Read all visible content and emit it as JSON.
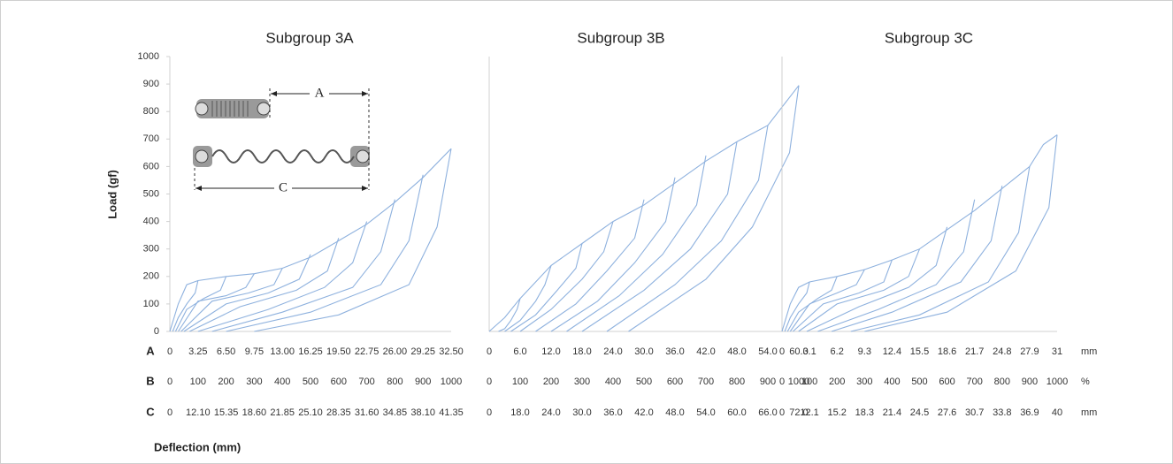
{
  "figure": {
    "y_label": "Load (gf)",
    "x_label": "Deflection (mm)",
    "row_names": [
      "A",
      "B",
      "C"
    ],
    "units": [
      "mm",
      "%",
      "mm"
    ],
    "inset_labels": [
      "A",
      "C"
    ]
  },
  "chart_data": [
    {
      "type": "line",
      "title": "Subgroup 3A",
      "xlim": [
        0,
        1000
      ],
      "ylim": [
        0,
        1000
      ],
      "yticks": [
        0,
        100,
        200,
        300,
        400,
        500,
        600,
        700,
        800,
        900,
        1000
      ],
      "xticks": [
        0,
        100,
        200,
        300,
        400,
        500,
        600,
        700,
        800,
        900,
        1000
      ],
      "row_a": [
        "0",
        "3.25",
        "6.50",
        "9.75",
        "13.00",
        "16.25",
        "19.50",
        "22.75",
        "26.00",
        "29.25",
        "32.50"
      ],
      "row_c": [
        "0",
        "12.10",
        "15.35",
        "18.60",
        "21.85",
        "25.10",
        "28.35",
        "31.60",
        "34.85",
        "38.10",
        "41.35"
      ],
      "series": [
        {
          "color": "#8eb1de",
          "x": [
            0,
            30,
            60,
            100,
            200,
            300,
            400,
            500,
            600,
            700,
            800,
            900,
            1000
          ],
          "values": [
            0,
            100,
            170,
            185,
            200,
            210,
            230,
            270,
            330,
            390,
            470,
            560,
            665
          ]
        },
        {
          "color": "#8eb1de",
          "x": [
            1000,
            950,
            850,
            600,
            300
          ],
          "values": [
            665,
            380,
            170,
            60,
            0
          ]
        },
        {
          "color": "#8eb1de",
          "x": [
            900,
            850,
            750,
            500,
            200
          ],
          "values": [
            570,
            330,
            170,
            70,
            0
          ]
        },
        {
          "color": "#8eb1de",
          "x": [
            800,
            750,
            650,
            400,
            150
          ],
          "values": [
            480,
            290,
            160,
            70,
            0
          ]
        },
        {
          "color": "#8eb1de",
          "x": [
            700,
            650,
            550,
            350,
            100
          ],
          "values": [
            400,
            250,
            160,
            80,
            0
          ]
        },
        {
          "color": "#8eb1de",
          "x": [
            600,
            560,
            450,
            250,
            70
          ],
          "values": [
            340,
            220,
            150,
            90,
            0
          ]
        },
        {
          "color": "#8eb1de",
          "x": [
            500,
            460,
            350,
            200,
            50
          ],
          "values": [
            280,
            190,
            140,
            100,
            0
          ]
        },
        {
          "color": "#8eb1de",
          "x": [
            400,
            370,
            280,
            150,
            40
          ],
          "values": [
            230,
            170,
            140,
            110,
            0
          ]
        },
        {
          "color": "#8eb1de",
          "x": [
            300,
            270,
            200,
            100,
            30
          ],
          "values": [
            210,
            160,
            130,
            110,
            0
          ]
        },
        {
          "color": "#8eb1de",
          "x": [
            200,
            180,
            120,
            60,
            20
          ],
          "values": [
            200,
            150,
            120,
            80,
            0
          ]
        },
        {
          "color": "#8eb1de",
          "x": [
            100,
            90,
            60,
            30,
            10
          ],
          "values": [
            185,
            140,
            100,
            50,
            0
          ]
        }
      ]
    },
    {
      "type": "line",
      "title": "Subgroup 3B",
      "xlim": [
        0,
        1000
      ],
      "ylim": [
        0,
        1000
      ],
      "xticks": [
        0,
        100,
        200,
        300,
        400,
        500,
        600,
        700,
        800,
        900,
        1000
      ],
      "row_a": [
        "0",
        "6.0",
        "12.0",
        "18.0",
        "24.0",
        "30.0",
        "36.0",
        "42.0",
        "48.0",
        "54.0",
        "60.0"
      ],
      "row_c": [
        "0",
        "18.0",
        "24.0",
        "30.0",
        "36.0",
        "42.0",
        "48.0",
        "54.0",
        "60.0",
        "66.0",
        "72.0"
      ],
      "series": [
        {
          "color": "#8eb1de",
          "x": [
            0,
            50,
            100,
            200,
            300,
            400,
            500,
            600,
            700,
            800,
            900,
            1000
          ],
          "values": [
            0,
            50,
            120,
            240,
            320,
            400,
            460,
            540,
            620,
            690,
            750,
            895
          ]
        },
        {
          "color": "#8eb1de",
          "x": [
            1000,
            970,
            850,
            700,
            450
          ],
          "values": [
            895,
            650,
            380,
            190,
            0
          ]
        },
        {
          "color": "#8eb1de",
          "x": [
            900,
            870,
            750,
            600,
            380
          ],
          "values": [
            750,
            550,
            330,
            170,
            0
          ]
        },
        {
          "color": "#8eb1de",
          "x": [
            800,
            770,
            650,
            500,
            300
          ],
          "values": [
            690,
            500,
            300,
            150,
            0
          ]
        },
        {
          "color": "#8eb1de",
          "x": [
            700,
            670,
            560,
            420,
            250
          ],
          "values": [
            640,
            460,
            280,
            130,
            0
          ]
        },
        {
          "color": "#8eb1de",
          "x": [
            600,
            570,
            470,
            350,
            200
          ],
          "values": [
            560,
            400,
            250,
            110,
            0
          ]
        },
        {
          "color": "#8eb1de",
          "x": [
            500,
            470,
            380,
            280,
            150
          ],
          "values": [
            480,
            340,
            220,
            100,
            0
          ]
        },
        {
          "color": "#8eb1de",
          "x": [
            400,
            370,
            300,
            200,
            100
          ],
          "values": [
            400,
            290,
            190,
            80,
            0
          ]
        },
        {
          "color": "#8eb1de",
          "x": [
            300,
            280,
            220,
            150,
            70
          ],
          "values": [
            320,
            230,
            150,
            60,
            0
          ]
        },
        {
          "color": "#8eb1de",
          "x": [
            200,
            180,
            150,
            100,
            50
          ],
          "values": [
            240,
            170,
            110,
            40,
            0
          ]
        },
        {
          "color": "#8eb1de",
          "x": [
            100,
            90,
            70,
            50,
            30
          ],
          "values": [
            120,
            80,
            40,
            10,
            0
          ]
        }
      ]
    },
    {
      "type": "line",
      "title": "Subgroup 3C",
      "xlim": [
        0,
        1000
      ],
      "ylim": [
        0,
        1000
      ],
      "xticks": [
        0,
        100,
        200,
        300,
        400,
        500,
        600,
        700,
        800,
        900,
        1000
      ],
      "row_a": [
        "0",
        "3.1",
        "6.2",
        "9.3",
        "12.4",
        "15.5",
        "18.6",
        "21.7",
        "24.8",
        "27.9",
        "31"
      ],
      "row_c": [
        "0",
        "12.1",
        "15.2",
        "18.3",
        "21.4",
        "24.5",
        "27.6",
        "30.7",
        "33.8",
        "36.9",
        "40"
      ],
      "series": [
        {
          "color": "#8eb1de",
          "x": [
            0,
            30,
            60,
            100,
            200,
            300,
            400,
            500,
            600,
            700,
            800,
            900,
            950,
            1000
          ],
          "values": [
            0,
            100,
            160,
            180,
            200,
            225,
            260,
            300,
            370,
            440,
            520,
            600,
            680,
            715
          ]
        },
        {
          "color": "#8eb1de",
          "x": [
            1000,
            970,
            850,
            600,
            300
          ],
          "values": [
            715,
            450,
            220,
            70,
            0
          ]
        },
        {
          "color": "#8eb1de",
          "x": [
            900,
            860,
            750,
            500,
            250
          ],
          "values": [
            600,
            360,
            180,
            60,
            0
          ]
        },
        {
          "color": "#8eb1de",
          "x": [
            800,
            760,
            650,
            400,
            180
          ],
          "values": [
            530,
            330,
            180,
            70,
            0
          ]
        },
        {
          "color": "#8eb1de",
          "x": [
            700,
            660,
            560,
            350,
            130
          ],
          "values": [
            480,
            290,
            170,
            80,
            0
          ]
        },
        {
          "color": "#8eb1de",
          "x": [
            600,
            560,
            460,
            280,
            90
          ],
          "values": [
            380,
            240,
            160,
            90,
            0
          ]
        },
        {
          "color": "#8eb1de",
          "x": [
            500,
            460,
            370,
            200,
            60
          ],
          "values": [
            300,
            200,
            150,
            100,
            0
          ]
        },
        {
          "color": "#8eb1de",
          "x": [
            400,
            370,
            280,
            150,
            40
          ],
          "values": [
            260,
            180,
            140,
            100,
            0
          ]
        },
        {
          "color": "#8eb1de",
          "x": [
            300,
            270,
            200,
            100,
            30
          ],
          "values": [
            225,
            170,
            140,
            100,
            0
          ]
        },
        {
          "color": "#8eb1de",
          "x": [
            200,
            180,
            130,
            60,
            20
          ],
          "values": [
            200,
            150,
            120,
            70,
            0
          ]
        },
        {
          "color": "#8eb1de",
          "x": [
            100,
            90,
            60,
            30,
            10
          ],
          "values": [
            180,
            140,
            100,
            50,
            0
          ]
        }
      ]
    }
  ]
}
